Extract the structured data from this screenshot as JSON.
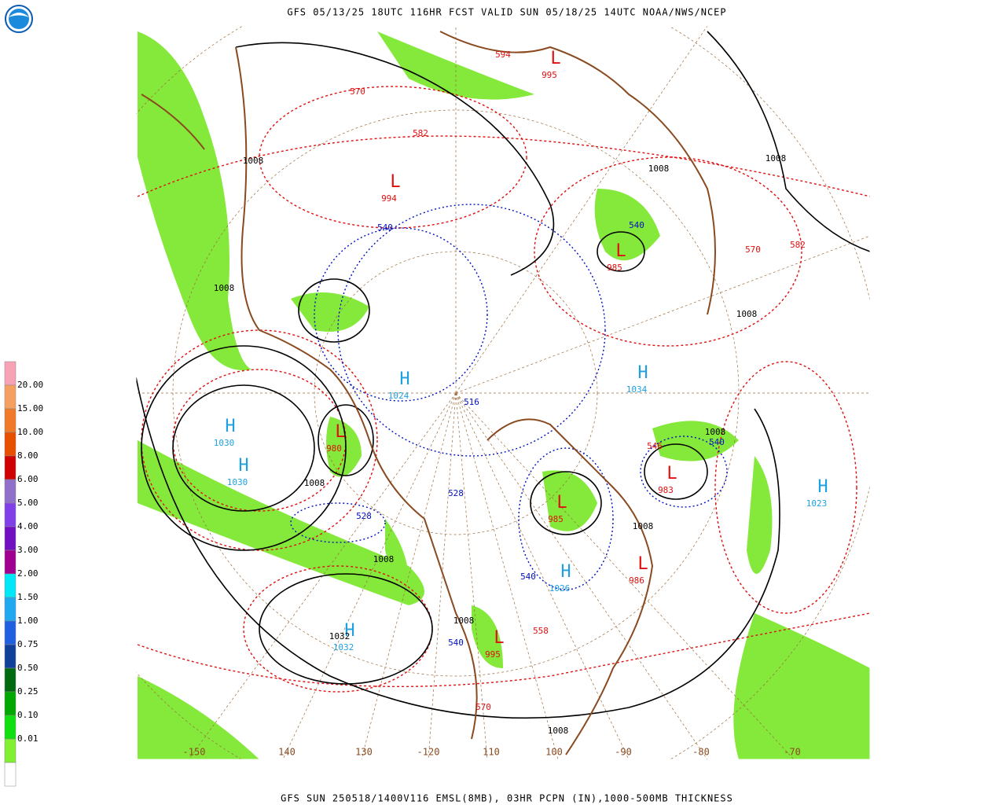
{
  "header": {
    "title": "GFS 05/13/25 18UTC 116HR FCST VALID SUN 05/18/25 14UTC NOAA/NWS/NCEP"
  },
  "footer": {
    "caption": "GFS SUN 250518/1400V116 EMSL(8MB), 03HR PCPN (IN),1000-500MB THICKNESS"
  },
  "legend": {
    "items": [
      {
        "label": null,
        "color": "#f7a3b5"
      },
      {
        "label": "20.00",
        "color": "#f5a060"
      },
      {
        "label": "15.00",
        "color": "#f07a28"
      },
      {
        "label": "10.00",
        "color": "#e85000"
      },
      {
        "label": "8.00",
        "color": "#d00000"
      },
      {
        "label": "6.00",
        "color": "#9070c8"
      },
      {
        "label": "5.00",
        "color": "#8040e8"
      },
      {
        "label": "4.00",
        "color": "#7010c0"
      },
      {
        "label": "3.00",
        "color": "#a00090"
      },
      {
        "label": "2.00",
        "color": "#00e8f8"
      },
      {
        "label": "1.50",
        "color": "#20a8f0"
      },
      {
        "label": "1.00",
        "color": "#2060e0"
      },
      {
        "label": "0.75",
        "color": "#104098"
      },
      {
        "label": "0.50",
        "color": "#006a10"
      },
      {
        "label": "0.25",
        "color": "#00a800"
      },
      {
        "label": "0.10",
        "color": "#10e010"
      },
      {
        "label": "0.01",
        "color": "#80f030"
      },
      {
        "label": null,
        "color": "#ffffff"
      }
    ]
  },
  "map": {
    "high_color": "#1ea0e0",
    "low_color": "#e01010",
    "centers": [
      {
        "symbol": "H",
        "value": "1030"
      },
      {
        "symbol": "H",
        "value": "1030"
      },
      {
        "symbol": "H",
        "value": "1032"
      },
      {
        "symbol": "H",
        "value": "1026"
      },
      {
        "symbol": "H",
        "value": "1023"
      },
      {
        "symbol": "H",
        "value": "1034"
      },
      {
        "symbol": "H",
        "value": "1024"
      },
      {
        "symbol": "L",
        "value": "980"
      },
      {
        "symbol": "L",
        "value": "983"
      },
      {
        "symbol": "L",
        "value": "985"
      },
      {
        "symbol": "L",
        "value": "986"
      },
      {
        "symbol": "L",
        "value": "995"
      },
      {
        "symbol": "L",
        "value": "985"
      },
      {
        "symbol": "L",
        "value": "995"
      },
      {
        "symbol": "L",
        "value": "994"
      }
    ],
    "thickness_labels": [
      {
        "text": "540",
        "color": "#0010c0"
      },
      {
        "text": "528",
        "color": "#0010c0"
      },
      {
        "text": "528",
        "color": "#0010c0"
      },
      {
        "text": "540",
        "color": "#0010c0"
      },
      {
        "text": "540",
        "color": "#0010c0"
      },
      {
        "text": "540",
        "color": "#0010c0"
      },
      {
        "text": "540",
        "color": "#0010c0"
      },
      {
        "text": "516",
        "color": "#0010c0"
      },
      {
        "text": "570",
        "color": "#e01010"
      },
      {
        "text": "582",
        "color": "#e01010"
      },
      {
        "text": "594",
        "color": "#e01010"
      },
      {
        "text": "582",
        "color": "#e01010"
      },
      {
        "text": "570",
        "color": "#e01010"
      },
      {
        "text": "546",
        "color": "#e01010"
      },
      {
        "text": "558",
        "color": "#e01010"
      },
      {
        "text": "570",
        "color": "#e01010"
      }
    ],
    "isobar_labels": [
      "1008",
      "1008",
      "1008",
      "1008",
      "1008",
      "1008",
      "1008",
      "1008",
      "1008",
      "1008",
      "1008",
      "1032"
    ],
    "longitude_labels": [
      "-150",
      "140",
      "130",
      "-120",
      "110",
      "100",
      "-90",
      "-80",
      "-70"
    ]
  }
}
